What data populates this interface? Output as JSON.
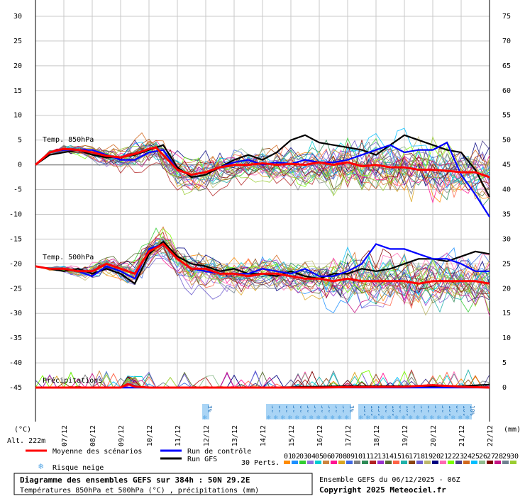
{
  "chart_data": {
    "type": "line",
    "title": "Diagramme des ensembles GEFS sur 384h : 50N 29.2E",
    "subtitle": "Températures 850hPa et 500hPa (°C) , précipitations (mm)",
    "ensemble_info": "Ensemble GEFS du 06/12/2025 - 06Z",
    "copyright": "Copyright 2025 Meteociel.fr",
    "altitude": "Alt. 222m",
    "left_axis_unit": "(°C)",
    "right_axis_unit": "(mm)",
    "left_ticks": [
      "30",
      "25",
      "20",
      "15",
      "10",
      "5",
      "0",
      "-5",
      "-10",
      "-15",
      "-20",
      "-25",
      "-30",
      "-35",
      "-40",
      "-45"
    ],
    "right_ticks": [
      "75",
      "70",
      "65",
      "60",
      "55",
      "50",
      "45",
      "40",
      "35",
      "30",
      "25",
      "20",
      "15",
      "10",
      "5",
      "0"
    ],
    "ylim_temp": [
      -45,
      30
    ],
    "x_labels": [
      "07/12",
      "08/12",
      "09/12",
      "10/12",
      "11/12",
      "12/12",
      "13/12",
      "14/12",
      "15/12",
      "16/12",
      "17/12",
      "18/12",
      "19/12",
      "20/12",
      "21/12",
      "22/12"
    ],
    "panel_labels": {
      "t850": "Temp. 850hPa",
      "t500": "Temp. 500hPa",
      "precip": "Précipitations"
    },
    "snow_risk": [
      {
        "day": 6.0,
        "pct": "3%"
      },
      {
        "day": 8.25,
        "pct": "3%"
      },
      {
        "day": 8.5,
        "pct": "6%"
      },
      {
        "day": 8.75,
        "pct": "6%"
      },
      {
        "day": 9.0,
        "pct": "3%"
      },
      {
        "day": 9.25,
        "pct": "6%"
      },
      {
        "day": 9.5,
        "pct": "3%"
      },
      {
        "day": 9.75,
        "pct": "3%"
      },
      {
        "day": 10.0,
        "pct": "3%"
      },
      {
        "day": 10.25,
        "pct": "3%"
      },
      {
        "day": 10.5,
        "pct": "3%"
      },
      {
        "day": 10.75,
        "pct": "3%"
      },
      {
        "day": 11.0,
        "pct": "3%"
      },
      {
        "day": 11.5,
        "pct": "10%"
      },
      {
        "day": 11.75,
        "pct": "10%"
      },
      {
        "day": 12.0,
        "pct": "13%"
      },
      {
        "day": 12.25,
        "pct": "6%"
      },
      {
        "day": 12.5,
        "pct": "10%"
      },
      {
        "day": 12.75,
        "pct": "6%"
      },
      {
        "day": 13.0,
        "pct": "10%"
      },
      {
        "day": 13.25,
        "pct": "6%"
      },
      {
        "day": 13.5,
        "pct": "3%"
      },
      {
        "day": 13.75,
        "pct": "6%"
      },
      {
        "day": 14.0,
        "pct": "3%"
      },
      {
        "day": 14.25,
        "pct": "3%"
      },
      {
        "day": 14.5,
        "pct": "10%"
      },
      {
        "day": 14.75,
        "pct": "6%"
      },
      {
        "day": 15.0,
        "pct": "10%"
      },
      {
        "day": 15.25,
        "pct": "10%"
      }
    ],
    "series": [
      {
        "name": "Moyenne des scénarios",
        "color": "#ff0000",
        "t850": [
          [
            0,
            0
          ],
          [
            0.5,
            2.5
          ],
          [
            1,
            3.2
          ],
          [
            1.5,
            3
          ],
          [
            2,
            2.5
          ],
          [
            2.5,
            1.8
          ],
          [
            3,
            1.5
          ],
          [
            3.5,
            2.2
          ],
          [
            4,
            3.2
          ],
          [
            4.25,
            3.5
          ],
          [
            4.5,
            2
          ],
          [
            5,
            -1
          ],
          [
            5.5,
            -2
          ],
          [
            6,
            -1.5
          ],
          [
            6.5,
            -0.5
          ],
          [
            7,
            0
          ],
          [
            7.5,
            0
          ],
          [
            8,
            0.3
          ],
          [
            8.5,
            0
          ],
          [
            9,
            0.2
          ],
          [
            9.5,
            0
          ],
          [
            10,
            0.5
          ],
          [
            10.5,
            0
          ],
          [
            11,
            0.5
          ],
          [
            11.5,
            -0.3
          ],
          [
            12,
            0
          ],
          [
            12.5,
            -0.5
          ],
          [
            13,
            -0.5
          ],
          [
            13.5,
            -1
          ],
          [
            14,
            -1
          ],
          [
            14.5,
            -1.2
          ],
          [
            15,
            -1.5
          ],
          [
            15.5,
            -1.5
          ],
          [
            16,
            -2.5
          ]
        ],
        "t500": [
          [
            0,
            -20.5
          ],
          [
            0.5,
            -21
          ],
          [
            1,
            -21
          ],
          [
            1.5,
            -21.5
          ],
          [
            2,
            -21.5
          ],
          [
            2.5,
            -20
          ],
          [
            3,
            -21
          ],
          [
            3.5,
            -22
          ],
          [
            4,
            -17.5
          ],
          [
            4.5,
            -16
          ],
          [
            5,
            -19
          ],
          [
            5.5,
            -21
          ],
          [
            6,
            -21
          ],
          [
            6.5,
            -22
          ],
          [
            7,
            -22
          ],
          [
            7.5,
            -22.5
          ],
          [
            8,
            -22
          ],
          [
            8.5,
            -22
          ],
          [
            9,
            -22.5
          ],
          [
            9.5,
            -23
          ],
          [
            10,
            -23
          ],
          [
            10.5,
            -23.5
          ],
          [
            11,
            -23
          ],
          [
            11.5,
            -23.5
          ],
          [
            12,
            -23.5
          ],
          [
            12.5,
            -23.5
          ],
          [
            13,
            -23.5
          ],
          [
            13.5,
            -24
          ],
          [
            14,
            -23.5
          ],
          [
            14.5,
            -23.5
          ],
          [
            15,
            -23.5
          ],
          [
            15.5,
            -23.5
          ],
          [
            16,
            -24
          ]
        ],
        "precip": [
          [
            0,
            0
          ],
          [
            3,
            0
          ],
          [
            3.25,
            1.2
          ],
          [
            3.5,
            0.3
          ],
          [
            4,
            0
          ],
          [
            8,
            0
          ],
          [
            10,
            0
          ],
          [
            11,
            0.2
          ],
          [
            13,
            0.3
          ],
          [
            14,
            0.8
          ],
          [
            15,
            0.3
          ],
          [
            16,
            0
          ]
        ]
      },
      {
        "name": "Run de contrôle",
        "color": "#0000ff",
        "t850": [
          [
            0,
            0
          ],
          [
            0.5,
            2.5
          ],
          [
            1,
            3
          ],
          [
            1.5,
            3
          ],
          [
            2,
            3
          ],
          [
            2.5,
            2
          ],
          [
            3,
            1
          ],
          [
            3.5,
            1
          ],
          [
            4,
            2.5
          ],
          [
            4.5,
            3
          ],
          [
            5,
            -1
          ],
          [
            5.5,
            -2
          ],
          [
            6,
            -1.5
          ],
          [
            6.5,
            -0.5
          ],
          [
            7,
            0.5
          ],
          [
            7.5,
            1
          ],
          [
            8,
            0
          ],
          [
            8.5,
            0.5
          ],
          [
            9,
            0.2
          ],
          [
            9.5,
            1
          ],
          [
            10,
            0.5
          ],
          [
            10.5,
            0.5
          ],
          [
            11,
            1
          ],
          [
            11.5,
            2
          ],
          [
            12,
            3
          ],
          [
            12.5,
            4
          ],
          [
            13,
            2.5
          ],
          [
            13.5,
            3
          ],
          [
            14,
            3
          ],
          [
            14.5,
            4.5
          ],
          [
            15,
            -2
          ],
          [
            15.5,
            -6
          ],
          [
            16,
            -10.5
          ]
        ],
        "t500": [
          [
            0,
            -20.5
          ],
          [
            0.5,
            -21
          ],
          [
            1,
            -21
          ],
          [
            1.5,
            -21.5
          ],
          [
            2,
            -22.5
          ],
          [
            2.5,
            -20.5
          ],
          [
            3,
            -21.5
          ],
          [
            3.5,
            -23
          ],
          [
            4,
            -17
          ],
          [
            4.5,
            -16
          ],
          [
            5,
            -19
          ],
          [
            5.5,
            -21
          ],
          [
            6,
            -21.5
          ],
          [
            6.5,
            -22
          ],
          [
            7,
            -22
          ],
          [
            7.5,
            -22
          ],
          [
            8,
            -21
          ],
          [
            8.5,
            -21.5
          ],
          [
            9,
            -22
          ],
          [
            9.5,
            -21
          ],
          [
            10,
            -22.5
          ],
          [
            10.5,
            -22.5
          ],
          [
            11,
            -21.5
          ],
          [
            11.5,
            -20
          ],
          [
            12,
            -16
          ],
          [
            12.5,
            -17
          ],
          [
            13,
            -17
          ],
          [
            13.5,
            -18
          ],
          [
            14,
            -19
          ],
          [
            14.5,
            -19
          ],
          [
            15,
            -20
          ],
          [
            15.5,
            -21.5
          ],
          [
            16,
            -21.5
          ]
        ],
        "precip": [
          [
            0,
            0
          ],
          [
            16,
            0
          ]
        ]
      },
      {
        "name": "Run GFS",
        "color": "#000000",
        "t850": [
          [
            0,
            0
          ],
          [
            0.5,
            2
          ],
          [
            1,
            2.5
          ],
          [
            1.5,
            3
          ],
          [
            2,
            2
          ],
          [
            2.5,
            1.5
          ],
          [
            3,
            1.5
          ],
          [
            3.5,
            2
          ],
          [
            4,
            3
          ],
          [
            4.5,
            4
          ],
          [
            5,
            -0.5
          ],
          [
            5.5,
            -2.5
          ],
          [
            6,
            -2
          ],
          [
            6.5,
            -0.5
          ],
          [
            7,
            1
          ],
          [
            7.5,
            2
          ],
          [
            8,
            1
          ],
          [
            8.5,
            2.5
          ],
          [
            9,
            5
          ],
          [
            9.5,
            6
          ],
          [
            10,
            4.5
          ],
          [
            10.5,
            4
          ],
          [
            11,
            3.5
          ],
          [
            11.5,
            3
          ],
          [
            12,
            2
          ],
          [
            12.5,
            4
          ],
          [
            13,
            6
          ],
          [
            13.5,
            5
          ],
          [
            14,
            4
          ],
          [
            14.5,
            3
          ],
          [
            15,
            2.5
          ],
          [
            15.5,
            -1
          ],
          [
            16,
            -6.5
          ]
        ],
        "t500": [
          [
            0,
            -20.5
          ],
          [
            0.5,
            -21
          ],
          [
            1,
            -21.5
          ],
          [
            1.5,
            -21
          ],
          [
            2,
            -22
          ],
          [
            2.5,
            -21
          ],
          [
            3,
            -22
          ],
          [
            3.5,
            -24
          ],
          [
            4,
            -18
          ],
          [
            4.5,
            -15.5
          ],
          [
            5,
            -18.5
          ],
          [
            5.5,
            -20
          ],
          [
            6,
            -20.5
          ],
          [
            6.5,
            -21.5
          ],
          [
            7,
            -21
          ],
          [
            7.5,
            -22
          ],
          [
            8,
            -22
          ],
          [
            8.5,
            -22.5
          ],
          [
            9,
            -21.5
          ],
          [
            9.5,
            -22.5
          ],
          [
            10,
            -23
          ],
          [
            10.5,
            -22
          ],
          [
            11,
            -22
          ],
          [
            11.5,
            -21
          ],
          [
            12,
            -21.5
          ],
          [
            12.5,
            -21
          ],
          [
            13,
            -20
          ],
          [
            13.5,
            -19
          ],
          [
            14,
            -19
          ],
          [
            14.5,
            -19.5
          ],
          [
            15,
            -18.5
          ],
          [
            15.5,
            -17.5
          ],
          [
            16,
            -18
          ]
        ],
        "precip": [
          [
            0,
            0
          ],
          [
            5,
            0
          ],
          [
            8,
            0
          ],
          [
            11,
            0.5
          ],
          [
            15,
            0.5
          ],
          [
            16,
            1
          ]
        ]
      }
    ],
    "perturbation_colors": [
      "#ff8c00",
      "#1e90ff",
      "#32cd32",
      "#9370db",
      "#00ced1",
      "#cd853f",
      "#ff1493",
      "#daa520",
      "#4169e1",
      "#808080",
      "#2e8b57",
      "#b22222",
      "#9932cc",
      "#556b2f",
      "#ff6347",
      "#20b2aa",
      "#8b4513",
      "#6a5acd",
      "#bdb76b",
      "#000080",
      "#ff69b4",
      "#7cfc00",
      "#483d8b",
      "#d2691e",
      "#00bfff",
      "#8fbc8f",
      "#800000",
      "#c71585",
      "#708090",
      "#9acd32"
    ],
    "perturbation_labels": [
      "01",
      "02",
      "03",
      "04",
      "05",
      "06",
      "07",
      "08",
      "09",
      "10",
      "11",
      "12",
      "13",
      "14",
      "15",
      "16",
      "17",
      "18",
      "19",
      "20",
      "21",
      "22",
      "23",
      "24",
      "25",
      "26",
      "27",
      "28",
      "29",
      "30"
    ]
  },
  "legend": {
    "mean": "Moyenne des scénarios",
    "control": "Run de contrôle",
    "gfs": "Run GFS",
    "snow": "Risque neige",
    "perts": "30 Perts."
  }
}
